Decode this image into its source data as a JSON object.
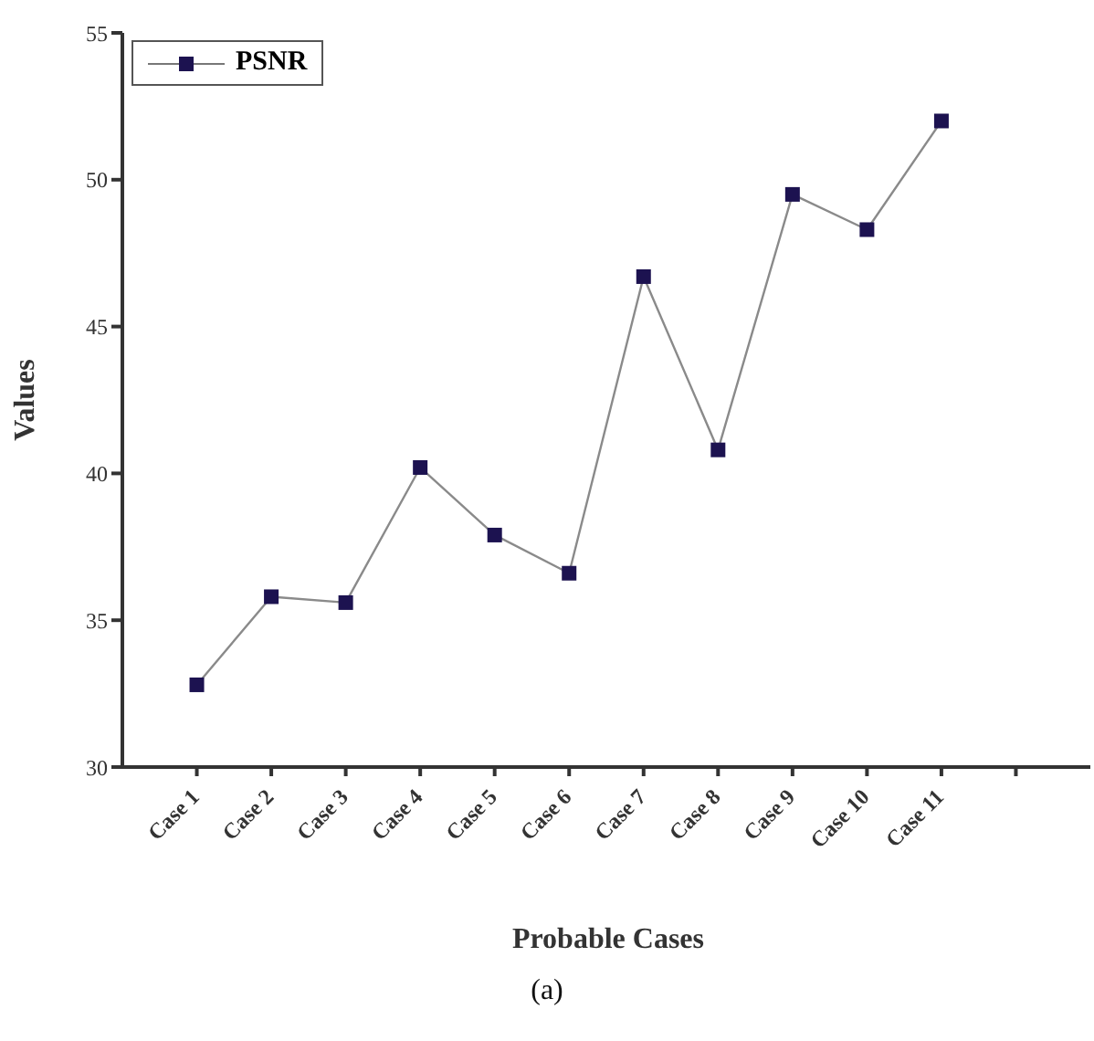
{
  "chart_data": {
    "type": "line",
    "xlabel": "Probable Cases",
    "ylabel": "Values",
    "annotations": [
      "(a)"
    ],
    "categories": [
      "Case 1",
      "Case 2",
      "Case 3",
      "Case 4",
      "Case 5",
      "Case 6",
      "Case 7",
      "Case 8",
      "Case 9",
      "Case 10",
      "Case 11",
      null
    ],
    "series": [
      {
        "name": "PSNR",
        "color": "#1c1250",
        "values": [
          32.8,
          35.8,
          35.6,
          40.2,
          37.9,
          36.6,
          46.7,
          40.8,
          49.5,
          48.3,
          52.0,
          null
        ]
      }
    ],
    "ylim": [
      30,
      55
    ],
    "yticks": [
      30,
      35,
      40,
      45,
      50,
      55
    ],
    "marker": "square",
    "line_style": "solid",
    "legend": "top left",
    "grid": false
  }
}
